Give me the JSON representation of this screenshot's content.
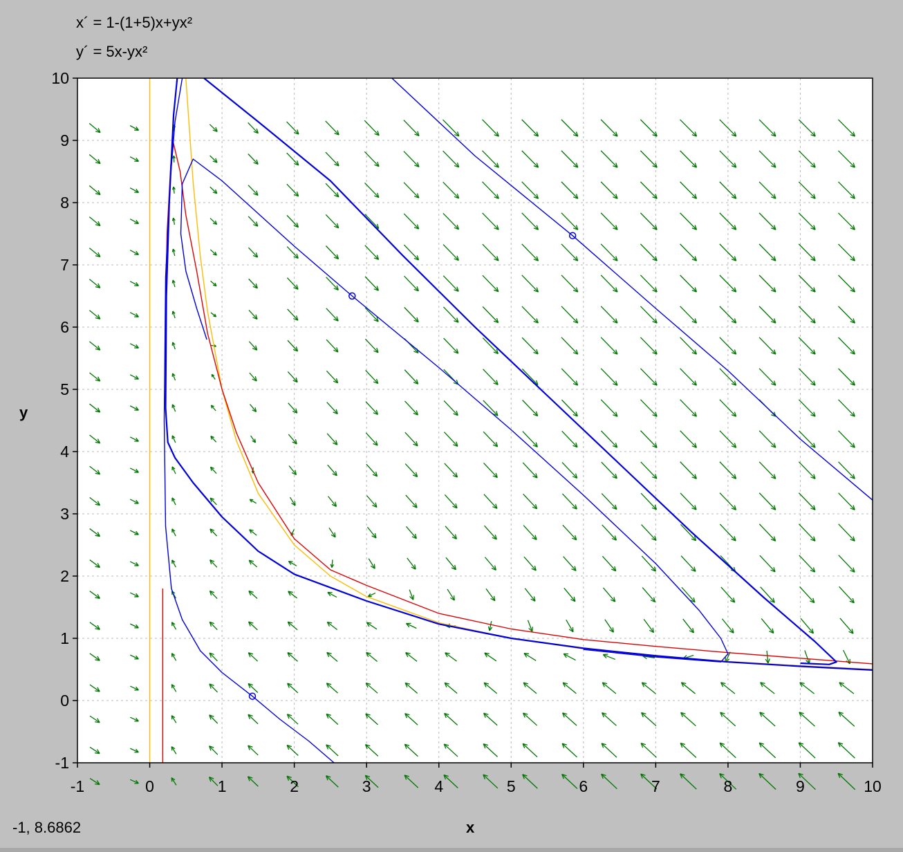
{
  "equations": {
    "x_eq": "x´ = 1-(1+5)x+yx²",
    "y_eq": "y´ = 5x-yx²"
  },
  "status": {
    "coordinates": "-1,  8.6862"
  },
  "chart_data": {
    "type": "line",
    "title": "",
    "xlabel": "x",
    "ylabel": "y",
    "xlim": [
      -1,
      10
    ],
    "ylim": [
      -1,
      10
    ],
    "xticks": [
      "-1",
      "0",
      "1",
      "2",
      "3",
      "4",
      "5",
      "6",
      "7",
      "8",
      "9",
      "10"
    ],
    "yticks": [
      "-1",
      "0",
      "1",
      "2",
      "3",
      "4",
      "5",
      "6",
      "7",
      "8",
      "9",
      "10"
    ],
    "grid": true,
    "parameters": {
      "a": 1,
      "b": 5
    },
    "direction_field_color": "#007700",
    "nullcline_colors": {
      "x_nullcline": "#ff0000",
      "y_nullcline": "#ffbb00"
    },
    "trajectory_color": "#0000dd",
    "series": [
      {
        "name": "",
        "color": "#ffbb00",
        "points": [
          [
            0,
            -1
          ],
          [
            0,
            10
          ]
        ]
      },
      {
        "name": "",
        "color": "#ffbb00",
        "points": [
          [
            0.5,
            10
          ],
          [
            0.6,
            8.33
          ],
          [
            0.7,
            7.14
          ],
          [
            0.8,
            6.25
          ],
          [
            1,
            5
          ],
          [
            1.2,
            4.17
          ],
          [
            1.5,
            3.33
          ],
          [
            2,
            2.5
          ],
          [
            2.5,
            2
          ],
          [
            3,
            1.67
          ],
          [
            4,
            1.25
          ],
          [
            5,
            1
          ],
          [
            6,
            0.83
          ],
          [
            7,
            0.71
          ],
          [
            8,
            0.63
          ],
          [
            9,
            0.56
          ],
          [
            10,
            0.5
          ]
        ]
      },
      {
        "name": "",
        "color": "#dd0000",
        "points": [
          [
            0.18,
            -1
          ],
          [
            0.18,
            1.8
          ]
        ]
      },
      {
        "name": "",
        "color": "#dd0000",
        "points": [
          [
            0.22,
            6.2
          ],
          [
            0.24,
            7.5
          ],
          [
            0.29,
            8.6
          ],
          [
            0.33,
            8.95
          ],
          [
            0.42,
            8.5
          ],
          [
            0.5,
            7.8
          ],
          [
            0.65,
            6.9
          ],
          [
            0.8,
            5.9
          ],
          [
            1,
            5.0
          ],
          [
            1.2,
            4.3
          ],
          [
            1.5,
            3.5
          ],
          [
            2,
            2.6
          ],
          [
            2.5,
            2.1
          ],
          [
            3,
            1.85
          ],
          [
            4,
            1.4
          ],
          [
            5,
            1.15
          ],
          [
            6,
            0.98
          ],
          [
            7,
            0.87
          ],
          [
            8,
            0.77
          ],
          [
            9,
            0.68
          ],
          [
            10,
            0.59
          ]
        ]
      },
      {
        "name": "",
        "color": "#0000dd",
        "marker": [
          1.42,
          0.07
        ],
        "points": [
          [
            2.55,
            -1
          ],
          [
            2.2,
            -0.65
          ],
          [
            1.8,
            -0.3
          ],
          [
            1.42,
            0.07
          ],
          [
            1.0,
            0.45
          ],
          [
            0.7,
            0.8
          ],
          [
            0.45,
            1.3
          ],
          [
            0.3,
            1.8
          ],
          [
            0.22,
            2.8
          ],
          [
            0.2,
            4.5
          ],
          [
            0.22,
            6.8
          ],
          [
            0.28,
            8.3
          ],
          [
            0.35,
            9.3
          ],
          [
            0.45,
            10
          ]
        ]
      },
      {
        "name": "",
        "color": "#0000dd",
        "marker": [
          2.8,
          6.5
        ],
        "points": [
          [
            0.79,
            5.8
          ],
          [
            0.65,
            6.3
          ],
          [
            0.5,
            6.9
          ],
          [
            0.43,
            7.5
          ],
          [
            0.45,
            8.3
          ],
          [
            0.6,
            8.7
          ],
          [
            1.0,
            8.35
          ],
          [
            2.0,
            7.3
          ],
          [
            2.8,
            6.5
          ],
          [
            4.0,
            5.35
          ],
          [
            5.0,
            4.35
          ],
          [
            6.0,
            3.3
          ],
          [
            7.0,
            2.2
          ],
          [
            7.6,
            1.45
          ],
          [
            7.9,
            1.0
          ],
          [
            8.0,
            0.75
          ],
          [
            7.9,
            0.62
          ],
          [
            7.0,
            0.7
          ],
          [
            6.0,
            0.82
          ]
        ]
      },
      {
        "name": "",
        "color": "#0000dd",
        "width": 2.2,
        "points": [
          [
            0.75,
            10
          ],
          [
            1.5,
            9.3
          ],
          [
            2.5,
            8.35
          ],
          [
            3.5,
            7.15
          ],
          [
            4.5,
            6.0
          ],
          [
            5.5,
            4.9
          ],
          [
            6.5,
            3.8
          ],
          [
            7.5,
            2.7
          ],
          [
            8.5,
            1.65
          ],
          [
            9.2,
            0.95
          ],
          [
            9.5,
            0.62
          ],
          [
            9.4,
            0.58
          ],
          [
            9.0,
            0.6
          ]
        ]
      },
      {
        "name": "",
        "color": "#0000dd",
        "width": 2.2,
        "points": [
          [
            10,
            0.49
          ],
          [
            9,
            0.55
          ],
          [
            8,
            0.62
          ],
          [
            7,
            0.72
          ],
          [
            6,
            0.84
          ],
          [
            5,
            1.0
          ],
          [
            4,
            1.23
          ],
          [
            3,
            1.6
          ],
          [
            2,
            2.03
          ],
          [
            1.5,
            2.4
          ],
          [
            1.0,
            2.95
          ],
          [
            0.6,
            3.5
          ],
          [
            0.35,
            3.9
          ],
          [
            0.25,
            4.15
          ],
          [
            0.22,
            4.7
          ],
          [
            0.23,
            6.5
          ],
          [
            0.27,
            8.0
          ],
          [
            0.33,
            9.4
          ],
          [
            0.38,
            10
          ]
        ]
      },
      {
        "name": "",
        "color": "#0000dd",
        "marker": [
          5.85,
          7.47
        ],
        "points": [
          [
            3.35,
            10
          ],
          [
            4.5,
            8.75
          ],
          [
            5.85,
            7.47
          ],
          [
            7,
            6.3
          ],
          [
            8,
            5.3
          ],
          [
            9,
            4.2
          ],
          [
            10,
            3.22
          ]
        ]
      }
    ]
  }
}
